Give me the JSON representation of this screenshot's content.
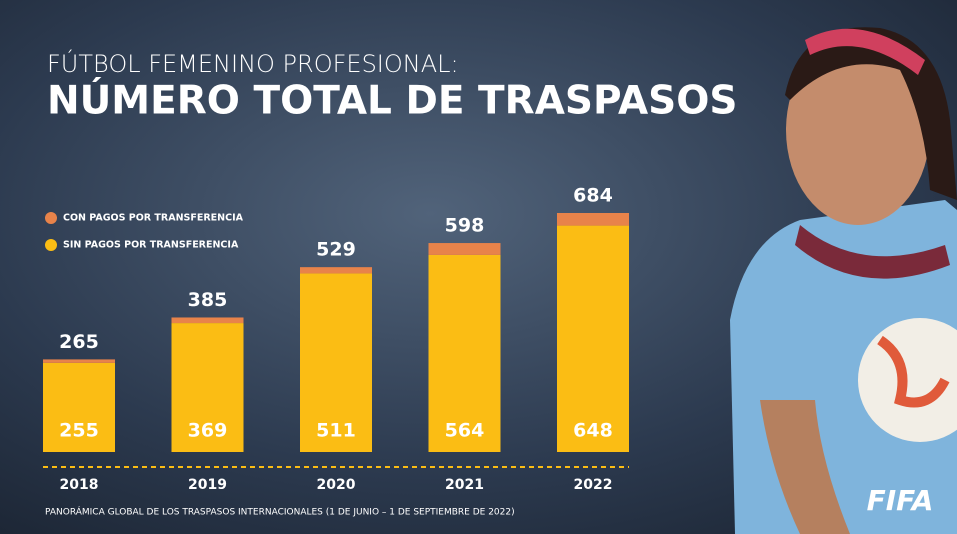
{
  "chart_data": {
    "type": "stacked-bar",
    "title_top": "FÚTBOL FEMENINO PROFESIONAL:",
    "title": "NÚMERO TOTAL DE TRASPASOS",
    "categories": [
      "2018",
      "2019",
      "2020",
      "2021",
      "2022"
    ],
    "series": [
      {
        "name": "SIN PAGOS POR TRANSFERENCIA",
        "color": "#fbbd14",
        "values": [
          255,
          369,
          511,
          564,
          648
        ]
      },
      {
        "name": "CON PAGOS POR TRANSFERENCIA",
        "color": "#e8834a",
        "values": [
          10,
          16,
          18,
          34,
          36
        ]
      }
    ],
    "totals": [
      265,
      385,
      529,
      598,
      684
    ],
    "footnote": "PANORÁMICA GLOBAL DE LOS TRASPASOS INTERNACIONALES (1 DE JUNIO – 1 DE SEPTIEMBRE DE 2022)",
    "logo": "FIFA"
  }
}
